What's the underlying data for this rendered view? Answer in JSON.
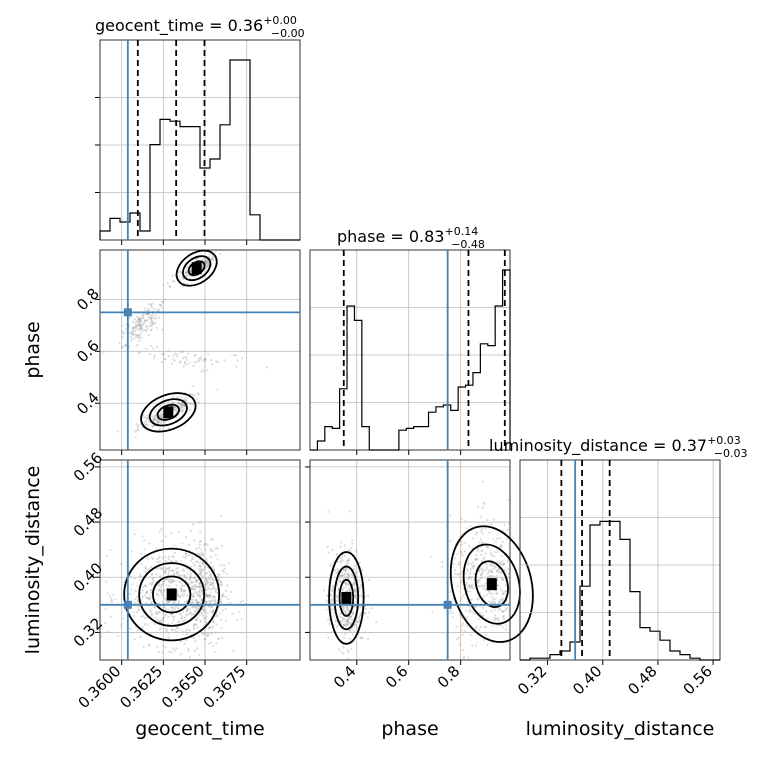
{
  "chart_data": {
    "type": "corner",
    "parameters": [
      {
        "name": "geocent_time",
        "title": "geocent_time = 0.36",
        "sup": "+0.00",
        "sub": "−0.00",
        "truth": 0.36037,
        "quantiles": [
          0.36097,
          0.36327,
          0.36497
        ],
        "ticks": [
          "0.3600",
          "0.3625",
          "0.3650",
          "0.3675"
        ],
        "tick_values": [
          0.36,
          0.3625,
          0.365,
          0.3675
        ],
        "range": [
          0.3587,
          0.3707
        ]
      },
      {
        "name": "phase",
        "title": "phase = 0.83",
        "sup": "+0.14",
        "sub": "−0.48",
        "truth": 0.75,
        "quantiles": [
          0.35,
          0.83,
          0.97
        ],
        "ticks": [
          "0.4",
          "0.6",
          "0.8"
        ],
        "tick_values": [
          0.4,
          0.6,
          0.8
        ],
        "range": [
          0.22,
          0.99
        ]
      },
      {
        "name": "luminosity_distance",
        "title": "luminosity_distance = 0.37",
        "sup": "+0.03",
        "sub": "−0.03",
        "truth": 0.36,
        "quantiles": [
          0.34,
          0.37,
          0.41
        ],
        "ticks": [
          "0.32",
          "0.40",
          "0.48",
          "0.56"
        ],
        "tick_values": [
          0.32,
          0.4,
          0.48,
          0.56
        ],
        "range": [
          0.28,
          0.57
        ]
      }
    ],
    "hist_1d": {
      "geocent_time": [
        0.05,
        0.12,
        0.1,
        0.15,
        0.05,
        0.53,
        0.67,
        0.66,
        0.63,
        0.63,
        0.4,
        0.45,
        0.64,
        1.0,
        1.0,
        0.14,
        0.0,
        0.0,
        0.0,
        0.0
      ],
      "phase": [
        0.0,
        0.05,
        0.13,
        0.12,
        0.34,
        0.8,
        0.72,
        0.13,
        0.0,
        0.0,
        0.0,
        0.0,
        0.11,
        0.12,
        0.13,
        0.13,
        0.21,
        0.24,
        0.25,
        0.22,
        0.35,
        0.36,
        0.43,
        0.59,
        0.58,
        0.8,
        1.0
      ],
      "luminosity_distance": [
        0.0,
        0.01,
        0.01,
        0.03,
        0.05,
        0.1,
        0.41,
        0.75,
        0.77,
        0.77,
        0.67,
        0.38,
        0.18,
        0.16,
        0.11,
        0.05,
        0.03,
        0.01,
        0.0,
        0.0
      ]
    },
    "grid": true,
    "colors": {
      "truth": "#4682b4",
      "hist": "#000000",
      "samples": "#9a9a9a"
    }
  }
}
